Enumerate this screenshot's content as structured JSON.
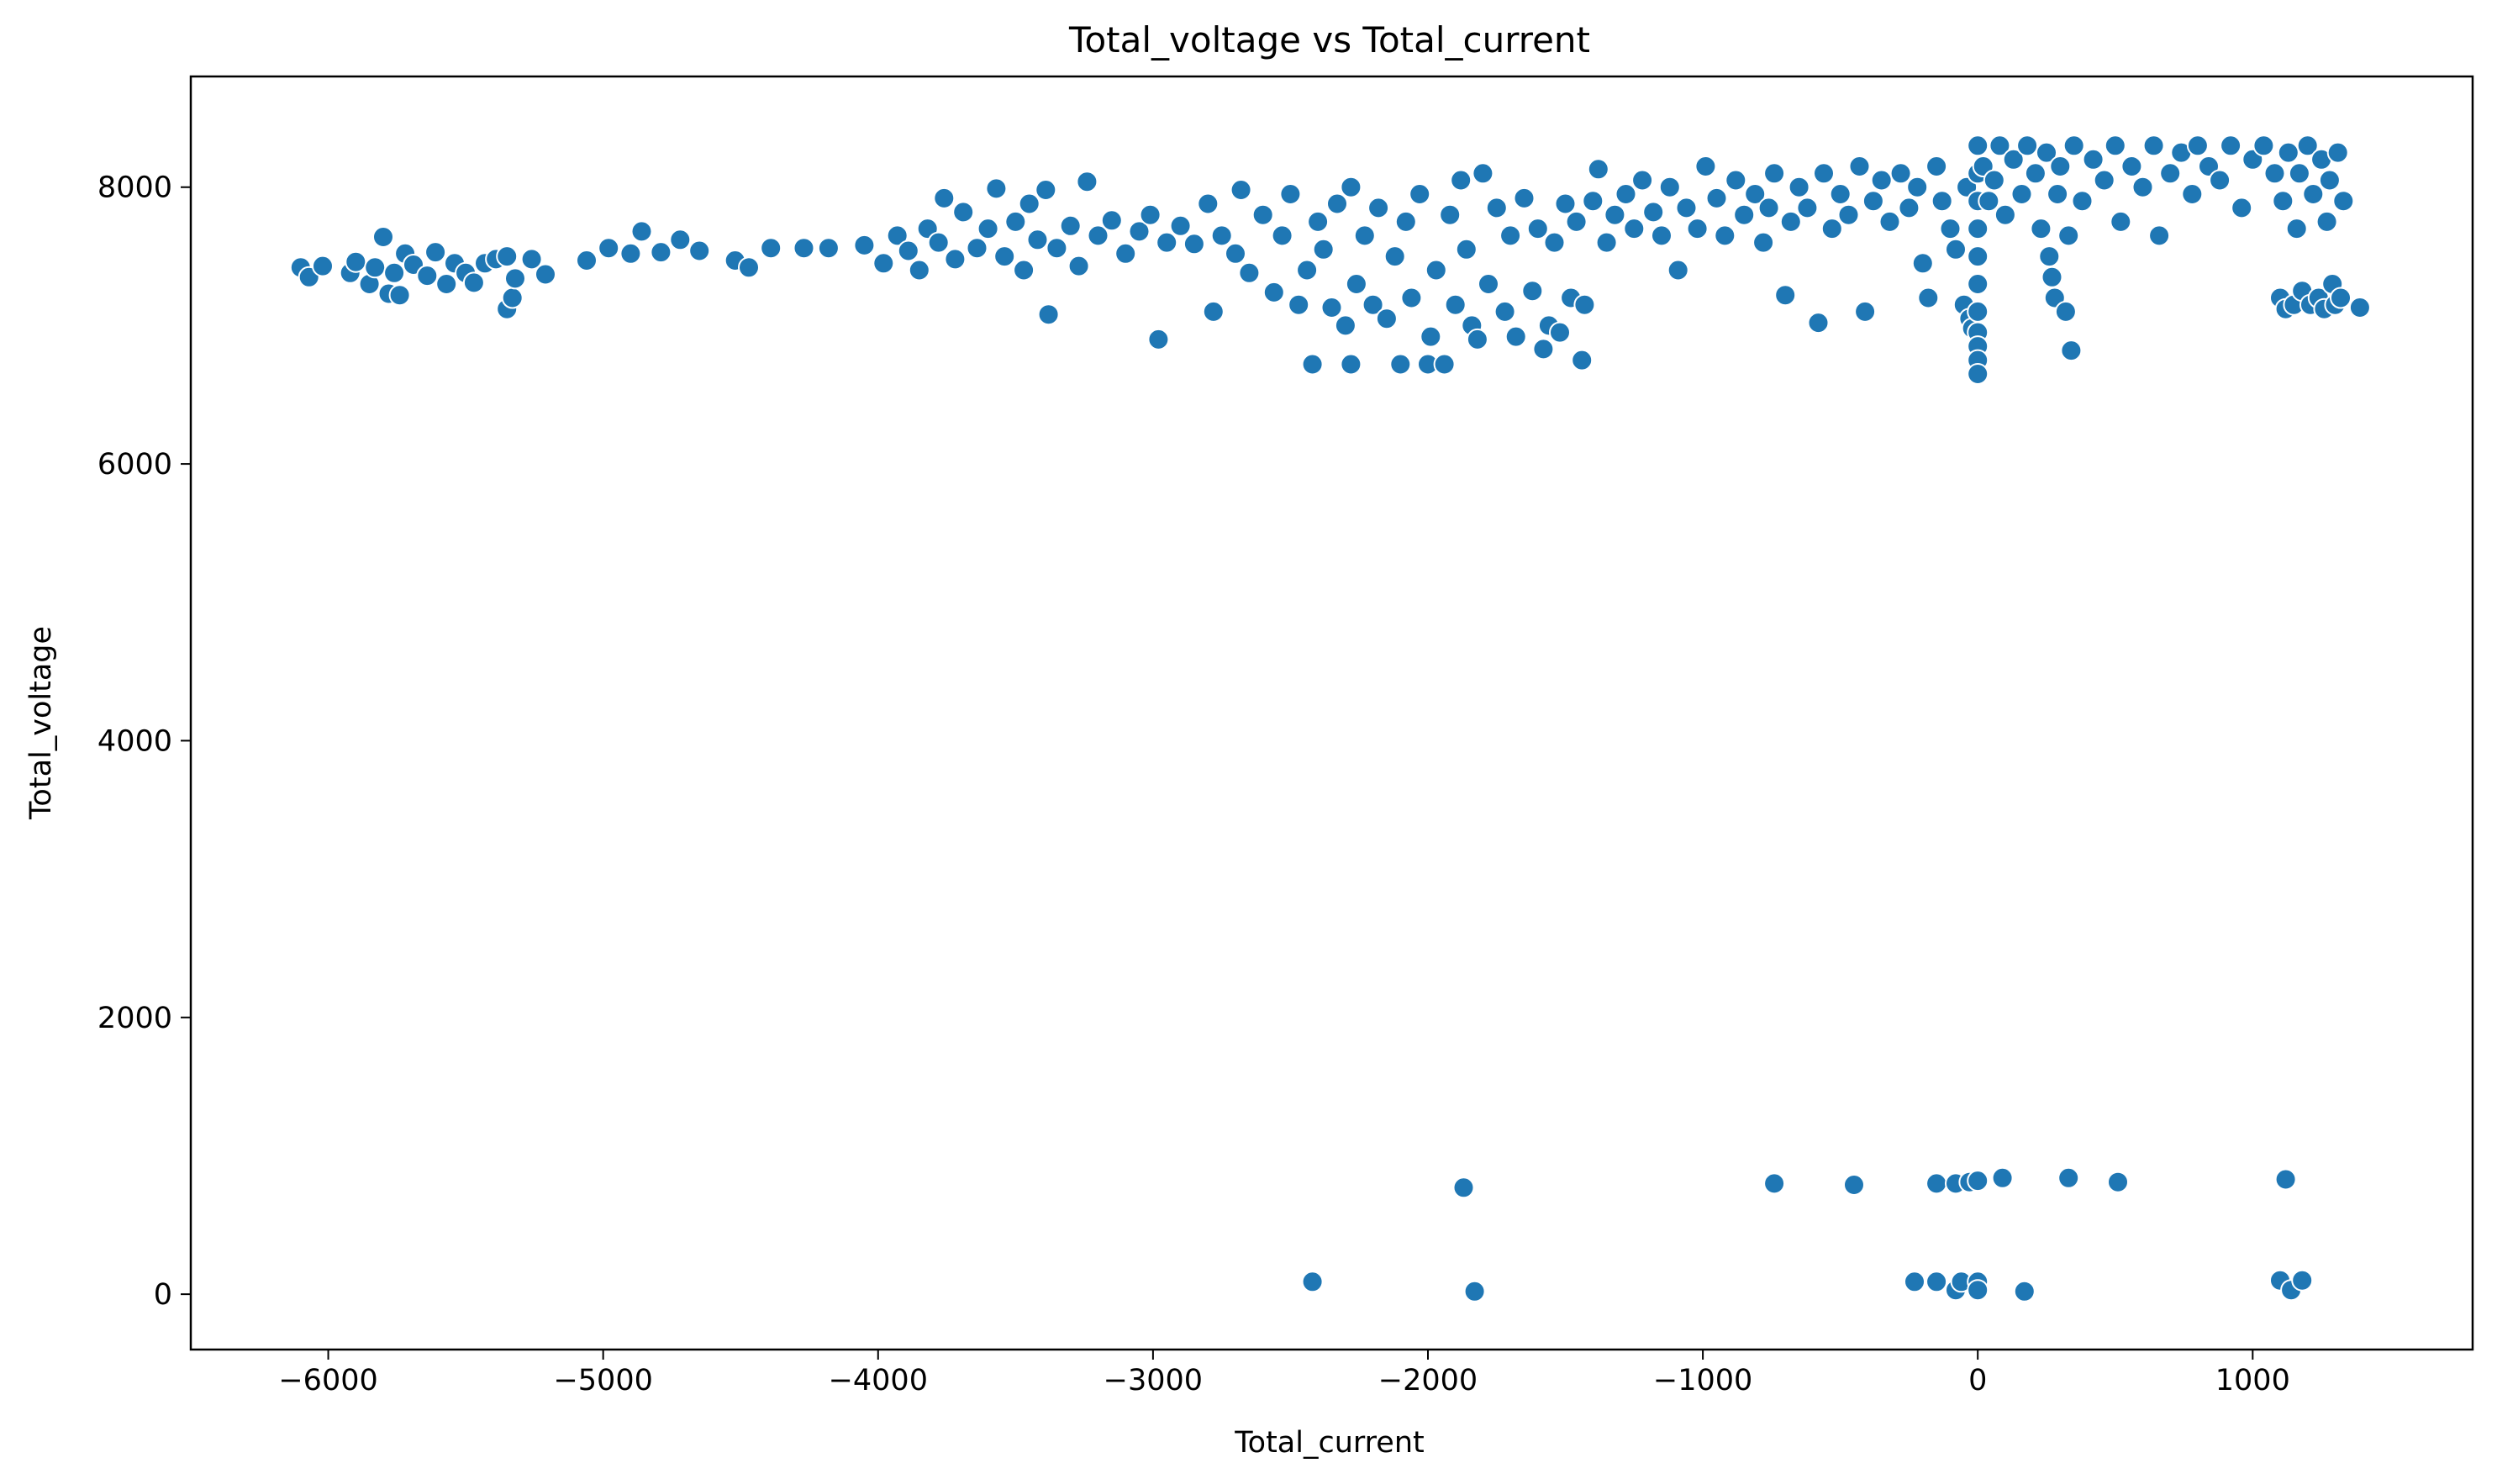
{
  "chart_data": {
    "type": "scatter",
    "title": "Total_voltage vs Total_current",
    "xlabel": "Total_current",
    "ylabel": "Total_voltage",
    "xlim": [
      -6500,
      1800
    ],
    "ylim": [
      -400,
      8800
    ],
    "xticks": [
      -6000,
      -5000,
      -4000,
      -3000,
      -2000,
      -1000,
      0,
      1000
    ],
    "xtick_labels": [
      "−6000",
      "−5000",
      "−4000",
      "−3000",
      "−2000",
      "−1000",
      "0",
      "1000"
    ],
    "yticks": [
      0,
      2000,
      4000,
      6000,
      8000
    ],
    "ytick_labels": [
      "0",
      "2000",
      "4000",
      "6000",
      "8000"
    ],
    "grid": false,
    "legend": "none",
    "colors": {
      "marker": "#1f77b4",
      "marker_edge": "#ffffff",
      "axes": "#000000",
      "background": "#ffffff"
    },
    "series": [
      {
        "points": [
          [
            -6100,
            7420
          ],
          [
            -6070,
            7350
          ],
          [
            -6020,
            7430
          ],
          [
            -5920,
            7380
          ],
          [
            -5900,
            7460
          ],
          [
            -5850,
            7300
          ],
          [
            -5830,
            7420
          ],
          [
            -5800,
            7640
          ],
          [
            -5780,
            7230
          ],
          [
            -5760,
            7380
          ],
          [
            -5740,
            7220
          ],
          [
            -5720,
            7520
          ],
          [
            -5690,
            7440
          ],
          [
            -5640,
            7360
          ],
          [
            -5610,
            7530
          ],
          [
            -5570,
            7300
          ],
          [
            -5540,
            7450
          ],
          [
            -5500,
            7380
          ],
          [
            -5470,
            7310
          ],
          [
            -5430,
            7450
          ],
          [
            -5390,
            7480
          ],
          [
            -5350,
            7500
          ],
          [
            -5350,
            7120
          ],
          [
            -5330,
            7200
          ],
          [
            -5320,
            7340
          ],
          [
            -5260,
            7480
          ],
          [
            -5210,
            7370
          ],
          [
            -5060,
            7470
          ],
          [
            -4980,
            7560
          ],
          [
            -4900,
            7520
          ],
          [
            -4860,
            7680
          ],
          [
            -4790,
            7530
          ],
          [
            -4720,
            7620
          ],
          [
            -4650,
            7540
          ],
          [
            -4520,
            7470
          ],
          [
            -4470,
            7420
          ],
          [
            -4390,
            7560
          ],
          [
            -4270,
            7560
          ],
          [
            -4180,
            7560
          ],
          [
            -4050,
            7580
          ],
          [
            -3980,
            7450
          ],
          [
            -3930,
            7650
          ],
          [
            -3890,
            7540
          ],
          [
            -3850,
            7400
          ],
          [
            -3820,
            7700
          ],
          [
            -3780,
            7600
          ],
          [
            -3760,
            7920
          ],
          [
            -3720,
            7480
          ],
          [
            -3690,
            7820
          ],
          [
            -3640,
            7560
          ],
          [
            -3600,
            7700
          ],
          [
            -3570,
            7990
          ],
          [
            -3540,
            7500
          ],
          [
            -3500,
            7750
          ],
          [
            -3470,
            7400
          ],
          [
            -3450,
            7880
          ],
          [
            -3420,
            7620
          ],
          [
            -3390,
            7980
          ],
          [
            -3380,
            7080
          ],
          [
            -3350,
            7560
          ],
          [
            -3300,
            7720
          ],
          [
            -3270,
            7430
          ],
          [
            -3240,
            8040
          ],
          [
            -3200,
            7650
          ],
          [
            -3150,
            7760
          ],
          [
            -3100,
            7520
          ],
          [
            -3050,
            7680
          ],
          [
            -3010,
            7800
          ],
          [
            -2980,
            6900
          ],
          [
            -2950,
            7600
          ],
          [
            -2900,
            7720
          ],
          [
            -2850,
            7590
          ],
          [
            -2800,
            7880
          ],
          [
            -2780,
            7100
          ],
          [
            -2750,
            7650
          ],
          [
            -2700,
            7520
          ],
          [
            -2680,
            7980
          ],
          [
            -2650,
            7380
          ],
          [
            -2600,
            7800
          ],
          [
            -2560,
            7240
          ],
          [
            -2530,
            7650
          ],
          [
            -2500,
            7950
          ],
          [
            -2470,
            7150
          ],
          [
            -2440,
            7400
          ],
          [
            -2420,
            6720
          ],
          [
            -2400,
            7750
          ],
          [
            -2380,
            7550
          ],
          [
            -2350,
            7130
          ],
          [
            -2330,
            7880
          ],
          [
            -2300,
            7000
          ],
          [
            -2280,
            8000
          ],
          [
            -2280,
            6720
          ],
          [
            -2260,
            7300
          ],
          [
            -2230,
            7650
          ],
          [
            -2200,
            7150
          ],
          [
            -2180,
            7850
          ],
          [
            -2150,
            7050
          ],
          [
            -2120,
            7500
          ],
          [
            -2100,
            6720
          ],
          [
            -2080,
            7750
          ],
          [
            -2060,
            7200
          ],
          [
            -2030,
            7950
          ],
          [
            -2000,
            6720
          ],
          [
            -1990,
            6920
          ],
          [
            -1970,
            7400
          ],
          [
            -1940,
            6720
          ],
          [
            -1920,
            7800
          ],
          [
            -1900,
            7150
          ],
          [
            -1880,
            8050
          ],
          [
            -1860,
            7550
          ],
          [
            -1840,
            7000
          ],
          [
            -1820,
            6900
          ],
          [
            -1800,
            8100
          ],
          [
            -1780,
            7300
          ],
          [
            -1750,
            7850
          ],
          [
            -1720,
            7100
          ],
          [
            -1700,
            7650
          ],
          [
            -1680,
            6920
          ],
          [
            -1650,
            7920
          ],
          [
            -1620,
            7250
          ],
          [
            -1600,
            7700
          ],
          [
            -1580,
            6830
          ],
          [
            -1560,
            7000
          ],
          [
            -1540,
            7600
          ],
          [
            -1520,
            6950
          ],
          [
            -1500,
            7880
          ],
          [
            -1480,
            7200
          ],
          [
            -1460,
            7750
          ],
          [
            -1440,
            6750
          ],
          [
            -1430,
            7150
          ],
          [
            -1400,
            7900
          ],
          [
            -1380,
            8130
          ],
          [
            -1350,
            7600
          ],
          [
            -1320,
            7800
          ],
          [
            -1280,
            7950
          ],
          [
            -1250,
            7700
          ],
          [
            -1220,
            8050
          ],
          [
            -1180,
            7820
          ],
          [
            -1150,
            7650
          ],
          [
            -1120,
            8000
          ],
          [
            -1090,
            7400
          ],
          [
            -1060,
            7850
          ],
          [
            -1020,
            7700
          ],
          [
            -990,
            8150
          ],
          [
            -950,
            7920
          ],
          [
            -920,
            7650
          ],
          [
            -880,
            8050
          ],
          [
            -850,
            7800
          ],
          [
            -810,
            7950
          ],
          [
            -780,
            7600
          ],
          [
            -760,
            7850
          ],
          [
            -740,
            8100
          ],
          [
            -700,
            7220
          ],
          [
            -680,
            7750
          ],
          [
            -650,
            8000
          ],
          [
            -620,
            7850
          ],
          [
            -580,
            7020
          ],
          [
            -560,
            8100
          ],
          [
            -530,
            7700
          ],
          [
            -500,
            7950
          ],
          [
            -470,
            7800
          ],
          [
            -430,
            8150
          ],
          [
            -410,
            7100
          ],
          [
            -380,
            7900
          ],
          [
            -350,
            8050
          ],
          [
            -320,
            7750
          ],
          [
            -280,
            8100
          ],
          [
            -250,
            7850
          ],
          [
            -220,
            8000
          ],
          [
            -200,
            7450
          ],
          [
            -180,
            7200
          ],
          [
            -150,
            8150
          ],
          [
            -130,
            7900
          ],
          [
            -100,
            7700
          ],
          [
            -80,
            7550
          ],
          [
            -50,
            7150
          ],
          [
            -40,
            8000
          ],
          [
            -30,
            7050
          ],
          [
            -20,
            6980
          ],
          [
            0,
            8300
          ],
          [
            0,
            8100
          ],
          [
            0,
            7900
          ],
          [
            0,
            7700
          ],
          [
            0,
            7500
          ],
          [
            0,
            7300
          ],
          [
            0,
            7100
          ],
          [
            0,
            6950
          ],
          [
            0,
            6850
          ],
          [
            0,
            6750
          ],
          [
            0,
            6650
          ],
          [
            20,
            8150
          ],
          [
            40,
            7900
          ],
          [
            60,
            8050
          ],
          [
            80,
            8300
          ],
          [
            100,
            7800
          ],
          [
            130,
            8200
          ],
          [
            160,
            7950
          ],
          [
            180,
            8300
          ],
          [
            210,
            8100
          ],
          [
            230,
            7700
          ],
          [
            250,
            8250
          ],
          [
            260,
            7500
          ],
          [
            270,
            7350
          ],
          [
            280,
            7200
          ],
          [
            290,
            7950
          ],
          [
            300,
            8150
          ],
          [
            320,
            7100
          ],
          [
            330,
            7650
          ],
          [
            340,
            6820
          ],
          [
            350,
            8300
          ],
          [
            380,
            7900
          ],
          [
            420,
            8200
          ],
          [
            460,
            8050
          ],
          [
            500,
            8300
          ],
          [
            520,
            7750
          ],
          [
            560,
            8150
          ],
          [
            600,
            8000
          ],
          [
            640,
            8300
          ],
          [
            660,
            7650
          ],
          [
            700,
            8100
          ],
          [
            740,
            8250
          ],
          [
            780,
            7950
          ],
          [
            800,
            8300
          ],
          [
            840,
            8150
          ],
          [
            880,
            8050
          ],
          [
            920,
            8300
          ],
          [
            960,
            7850
          ],
          [
            1000,
            8200
          ],
          [
            1040,
            8300
          ],
          [
            1080,
            8100
          ],
          [
            1100,
            7200
          ],
          [
            1110,
            7900
          ],
          [
            1120,
            7120
          ],
          [
            1130,
            8250
          ],
          [
            1150,
            7150
          ],
          [
            1160,
            7700
          ],
          [
            1170,
            8100
          ],
          [
            1180,
            7250
          ],
          [
            1200,
            8300
          ],
          [
            1210,
            7150
          ],
          [
            1220,
            7950
          ],
          [
            1240,
            7200
          ],
          [
            1250,
            8200
          ],
          [
            1260,
            7120
          ],
          [
            1270,
            7750
          ],
          [
            1280,
            8050
          ],
          [
            1290,
            7300
          ],
          [
            1300,
            7150
          ],
          [
            1310,
            8250
          ],
          [
            1320,
            7200
          ],
          [
            1330,
            7900
          ],
          [
            1390,
            7130
          ],
          [
            -1870,
            770
          ],
          [
            -740,
            800
          ],
          [
            -450,
            790
          ],
          [
            -150,
            800
          ],
          [
            -80,
            800
          ],
          [
            -30,
            810
          ],
          [
            0,
            820
          ],
          [
            90,
            840
          ],
          [
            330,
            840
          ],
          [
            510,
            810
          ],
          [
            1120,
            830
          ],
          [
            -2420,
            90
          ],
          [
            -1830,
            20
          ],
          [
            -230,
            90
          ],
          [
            -150,
            90
          ],
          [
            -80,
            30
          ],
          [
            -60,
            90
          ],
          [
            0,
            90
          ],
          [
            0,
            30
          ],
          [
            170,
            20
          ],
          [
            1100,
            100
          ],
          [
            1140,
            30
          ],
          [
            1180,
            100
          ]
        ]
      }
    ]
  }
}
